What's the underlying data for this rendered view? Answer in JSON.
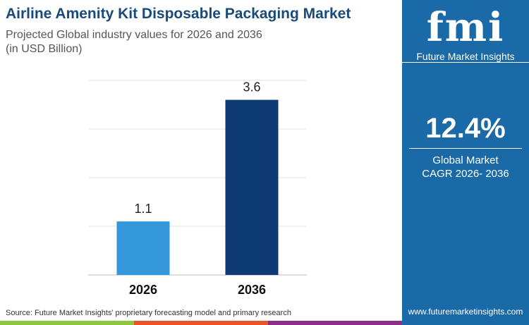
{
  "header": {
    "title": "Airline Amenity Kit Disposable Packaging Market",
    "subtitle": "Projected Global industry values for 2026 and 2036",
    "unit": "(in USD Billion)"
  },
  "panel": {
    "logo_text": "fmi",
    "brand": "Future Market Insights",
    "cagr_value": "12.4%",
    "cagr_label1": "Global Market",
    "cagr_label2": "CAGR 2026- 2036",
    "website": "www.futuremarketinsights.com",
    "bg_color": "#1b6aa8"
  },
  "footer": {
    "source": "Source: Future Market Insights’ proprietary forecasting model and primary research",
    "stripe_colors": [
      "#8dc63f",
      "#e8562a",
      "#8b2f86"
    ]
  },
  "chart_data": {
    "type": "bar",
    "categories": [
      "2026",
      "2036"
    ],
    "values": [
      1.1,
      3.6
    ],
    "data_labels": [
      "1.1",
      "3.6"
    ],
    "colors": [
      "#3497d9",
      "#0d3a73"
    ],
    "ylim": [
      0,
      4
    ],
    "grid": true,
    "title": "Airline Amenity Kit Disposable Packaging Market",
    "xlabel": "",
    "ylabel": ""
  }
}
